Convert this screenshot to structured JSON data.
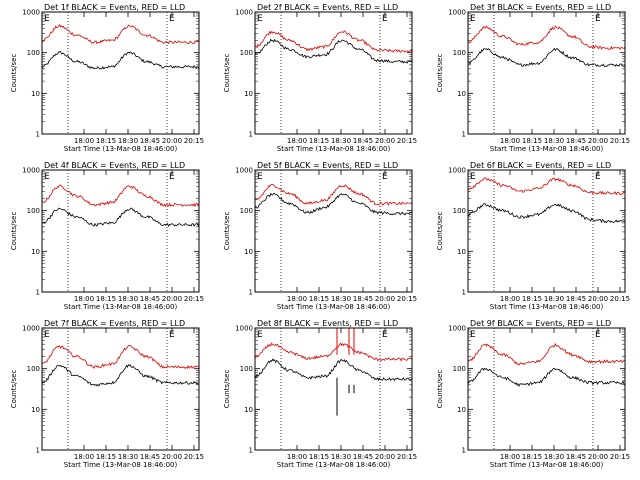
{
  "figure": {
    "background": "#ffffff",
    "colors": {
      "events": "#000000",
      "lld": "#e00000"
    }
  },
  "chart_data": [
    {
      "type": "line",
      "title": "Det 1f BLACK = Events, RED = LLD",
      "detector": 1,
      "xlabel": "Start Time (13-Mar-08 18:46:00)",
      "ylabel": "Counts/sec",
      "yscale": "log",
      "ylim": [
        1,
        1000
      ],
      "y_ticks": [
        "1",
        "10",
        "100",
        "1000"
      ],
      "x_tick_labels": [
        "18:00",
        "18:15",
        "18:30",
        "18:45",
        "20:00",
        "20:15"
      ],
      "markers": [
        "E",
        "E"
      ],
      "series": [
        {
          "name": "BLACK = Events",
          "color": "#000000",
          "profile": [
            45,
            100,
            60,
            42,
            45,
            100,
            60,
            45,
            45,
            45
          ]
        },
        {
          "name": "RED = LLD",
          "color": "#e00000",
          "profile": [
            200,
            450,
            270,
            180,
            200,
            450,
            270,
            180,
            180,
            180
          ]
        }
      ]
    },
    {
      "type": "line",
      "title": "Det 2f BLACK = Events, RED = LLD",
      "detector": 2,
      "xlabel": "Start Time (13-Mar-08 18:46:00)",
      "ylabel": "Counts/sec",
      "yscale": "log",
      "ylim": [
        1,
        1000
      ],
      "y_ticks": [
        "1",
        "10",
        "100",
        "1000"
      ],
      "x_tick_labels": [
        "18:00",
        "18:15",
        "18:30",
        "18:45",
        "20:00",
        "20:15"
      ],
      "markers": [
        "E",
        "E"
      ],
      "series": [
        {
          "name": "BLACK = Events",
          "color": "#000000",
          "profile": [
            90,
            200,
            120,
            80,
            90,
            200,
            120,
            65,
            60,
            60
          ]
        },
        {
          "name": "RED = LLD",
          "color": "#e00000",
          "profile": [
            140,
            330,
            200,
            120,
            140,
            330,
            200,
            115,
            110,
            110
          ]
        }
      ]
    },
    {
      "type": "line",
      "title": "Det 3f BLACK = Events, RED = LLD",
      "detector": 3,
      "xlabel": "Start Time (13-Mar-08 18:46:00)",
      "ylabel": "Counts/sec",
      "yscale": "log",
      "ylim": [
        1,
        1000
      ],
      "y_ticks": [
        "1",
        "10",
        "100",
        "1000"
      ],
      "x_tick_labels": [
        "18:00",
        "18:15",
        "18:30",
        "18:45",
        "20:00",
        "20:15"
      ],
      "markers": [
        "E",
        "E"
      ],
      "series": [
        {
          "name": "BLACK = Events",
          "color": "#000000",
          "profile": [
            55,
            120,
            75,
            50,
            55,
            120,
            75,
            50,
            50,
            50
          ]
        },
        {
          "name": "RED = LLD",
          "color": "#e00000",
          "profile": [
            180,
            420,
            250,
            160,
            180,
            420,
            250,
            140,
            130,
            130
          ]
        }
      ]
    },
    {
      "type": "line",
      "title": "Det 4f BLACK = Events, RED = LLD",
      "detector": 4,
      "xlabel": "Start Time (13-Mar-08 18:46:00)",
      "ylabel": "Counts/sec",
      "yscale": "log",
      "ylim": [
        1,
        1000
      ],
      "y_ticks": [
        "1",
        "10",
        "100",
        "1000"
      ],
      "x_tick_labels": [
        "18:00",
        "18:15",
        "18:30",
        "18:45",
        "20:00",
        "20:15"
      ],
      "markers": [
        "E",
        "E"
      ],
      "series": [
        {
          "name": "BLACK = Events",
          "color": "#000000",
          "profile": [
            50,
            110,
            70,
            45,
            50,
            110,
            70,
            45,
            45,
            45
          ]
        },
        {
          "name": "RED = LLD",
          "color": "#e00000",
          "profile": [
            160,
            400,
            230,
            140,
            160,
            400,
            230,
            140,
            140,
            140
          ]
        }
      ]
    },
    {
      "type": "line",
      "title": "Det 5f BLACK = Events, RED = LLD",
      "detector": 5,
      "xlabel": "Start Time (13-Mar-08 18:46:00)",
      "ylabel": "Counts/sec",
      "yscale": "log",
      "ylim": [
        1,
        1000
      ],
      "y_ticks": [
        "1",
        "10",
        "100",
        "1000"
      ],
      "x_tick_labels": [
        "18:00",
        "18:15",
        "18:30",
        "18:45",
        "20:00",
        "20:15"
      ],
      "markers": [
        "E",
        "E"
      ],
      "series": [
        {
          "name": "BLACK = Events",
          "color": "#000000",
          "profile": [
            120,
            250,
            150,
            90,
            120,
            250,
            150,
            90,
            85,
            85
          ]
        },
        {
          "name": "RED = LLD",
          "color": "#e00000",
          "profile": [
            180,
            420,
            260,
            150,
            180,
            420,
            260,
            150,
            150,
            150
          ]
        }
      ]
    },
    {
      "type": "line",
      "title": "Det 6f BLACK = Events, RED = LLD",
      "detector": 6,
      "xlabel": "Start Time (13-Mar-08 18:46:00)",
      "ylabel": "Counts/sec",
      "yscale": "log",
      "ylim": [
        1,
        1000
      ],
      "y_ticks": [
        "1",
        "10",
        "100",
        "1000"
      ],
      "x_tick_labels": [
        "18:00",
        "18:15",
        "18:30",
        "18:45",
        "20:00",
        "20:15"
      ],
      "markers": [
        "E",
        "E"
      ],
      "series": [
        {
          "name": "BLACK = Events",
          "color": "#000000",
          "profile": [
            80,
            140,
            100,
            70,
            80,
            140,
            100,
            60,
            55,
            55
          ]
        },
        {
          "name": "RED = LLD",
          "color": "#e00000",
          "profile": [
            350,
            600,
            420,
            300,
            350,
            600,
            420,
            280,
            270,
            270
          ]
        }
      ]
    },
    {
      "type": "line",
      "title": "Det 7f BLACK = Events, RED = LLD",
      "detector": 7,
      "xlabel": "Start Time (13-Mar-08 18:46:00)",
      "ylabel": "Counts/sec",
      "yscale": "log",
      "ylim": [
        1,
        1000
      ],
      "y_ticks": [
        "1",
        "10",
        "100",
        "1000"
      ],
      "x_tick_labels": [
        "18:00",
        "18:15",
        "18:30",
        "18:45",
        "20:00",
        "20:15"
      ],
      "markers": [
        "E",
        "E"
      ],
      "series": [
        {
          "name": "BLACK = Events",
          "color": "#000000",
          "profile": [
            45,
            120,
            65,
            40,
            45,
            120,
            65,
            45,
            45,
            45
          ]
        },
        {
          "name": "RED = LLD",
          "color": "#e00000",
          "profile": [
            130,
            350,
            200,
            110,
            130,
            350,
            200,
            110,
            110,
            110
          ]
        }
      ]
    },
    {
      "type": "line",
      "title": "Det 8f BLACK = Events, RED = LLD",
      "detector": 8,
      "xlabel": "Start Time (13-Mar-08 18:46:00)",
      "ylabel": "Counts/sec",
      "yscale": "log",
      "ylim": [
        1,
        1000
      ],
      "y_ticks": [
        "1",
        "10",
        "100",
        "1000"
      ],
      "x_tick_labels": [
        "18:00",
        "18:15",
        "18:30",
        "18:45",
        "20:00",
        "20:15"
      ],
      "markers": [
        "E",
        "E"
      ],
      "series": [
        {
          "name": "BLACK = Events",
          "color": "#000000",
          "profile": [
            65,
            160,
            90,
            60,
            65,
            160,
            90,
            55,
            55,
            55
          ]
        },
        {
          "name": "RED = LLD",
          "color": "#e00000",
          "profile": [
            200,
            400,
            250,
            180,
            200,
            400,
            250,
            170,
            170,
            170
          ]
        }
      ]
    },
    {
      "type": "line",
      "title": "Det 9f BLACK = Events, RED = LLD",
      "detector": 9,
      "xlabel": "Start Time (13-Mar-08 18:46:00)",
      "ylabel": "Counts/sec",
      "yscale": "log",
      "ylim": [
        1,
        1000
      ],
      "y_ticks": [
        "1",
        "10",
        "100",
        "1000"
      ],
      "x_tick_labels": [
        "18:00",
        "18:15",
        "18:30",
        "18:45",
        "20:00",
        "20:15"
      ],
      "markers": [
        "E",
        "E"
      ],
      "series": [
        {
          "name": "BLACK = Events",
          "color": "#000000",
          "profile": [
            45,
            100,
            60,
            40,
            45,
            100,
            60,
            45,
            45,
            45
          ]
        },
        {
          "name": "RED = LLD",
          "color": "#e00000",
          "profile": [
            150,
            380,
            220,
            130,
            150,
            380,
            220,
            150,
            150,
            150
          ]
        }
      ]
    }
  ]
}
